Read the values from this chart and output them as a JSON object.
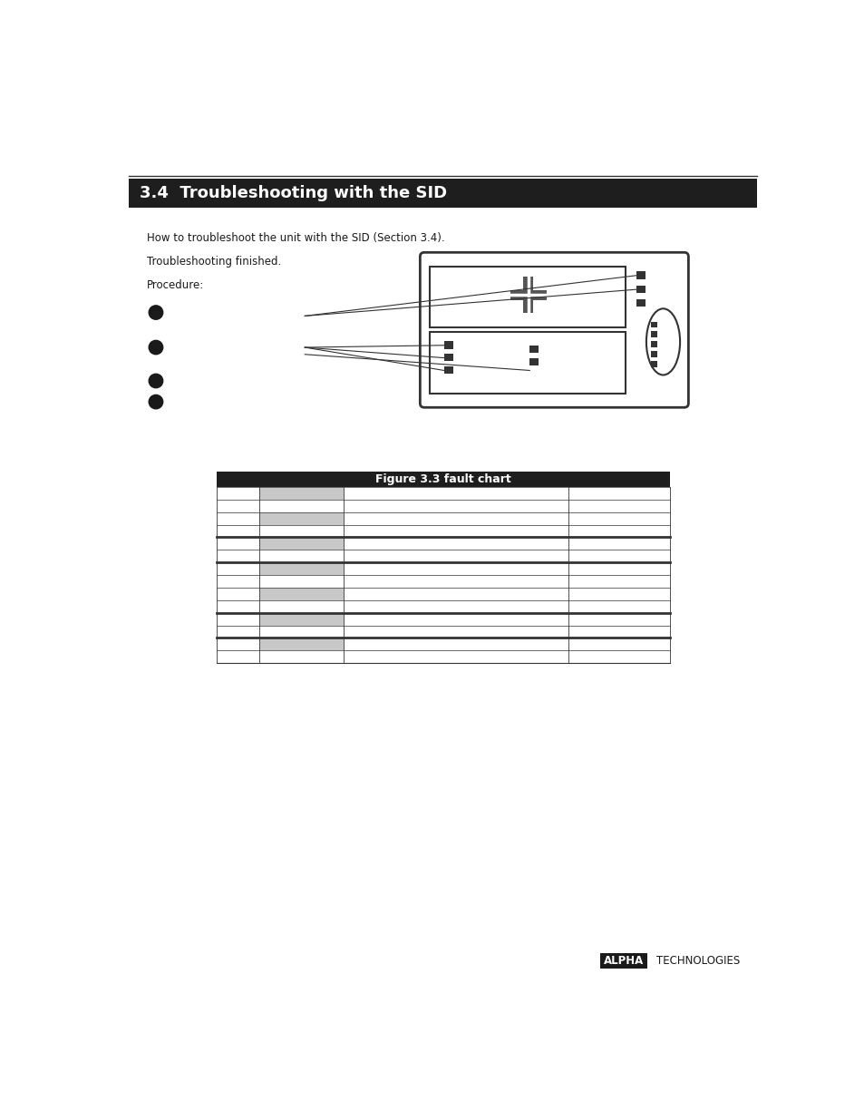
{
  "bg_color": "#ffffff",
  "header_color": "#1e1e1e",
  "header_text": "3.4  Troubleshooting with the SID",
  "header_text_color": "#ffffff",
  "header_font_size": 13,
  "body_text_color": "#1a1a1a",
  "body_font_size": 8.5,
  "table_header": "Figure 3.3 fault chart",
  "table_header_color": "#1e1e1e",
  "table_header_text_color": "#ffffff",
  "gray_cell_color": "#c8c8c8",
  "logo_text_alpha": "ALPHA",
  "logo_text_tech": "TECHNOLOGIES"
}
